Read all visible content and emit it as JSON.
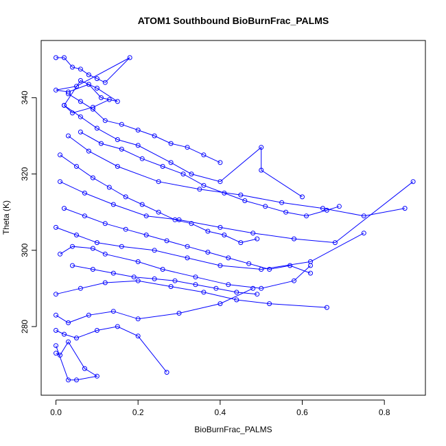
{
  "chart_data": {
    "type": "line",
    "markers": "open-circle",
    "title": "ATOM1 Southbound BioBurnFrac_PALMS",
    "xlabel": "BioBurnFrac_PALMS",
    "ylabel": "Theta (K)",
    "xlim": [
      -0.036,
      0.9
    ],
    "ylim": [
      262,
      355
    ],
    "xticks": [
      0.0,
      0.2,
      0.4,
      0.6,
      0.8
    ],
    "xtick_labels": [
      "0.0",
      "0.2",
      "0.4",
      "0.6",
      "0.8"
    ],
    "yticks": [
      280,
      300,
      320,
      340
    ],
    "ytick_labels": [
      "280",
      "300",
      "320",
      "340"
    ],
    "grid": false,
    "legend": "none",
    "color": "#0000ff",
    "series": [
      {
        "x": [
          0.0,
          0.02,
          0.04,
          0.06,
          0.08,
          0.1,
          0.12,
          0.18,
          0.05,
          0.0,
          0.03,
          0.08,
          0.11,
          0.15,
          0.1,
          0.06,
          0.02,
          0.04,
          0.09,
          0.13
        ],
        "y": [
          350.5,
          350.5,
          348.0,
          347.5,
          346.0,
          345.0,
          344.0,
          350.5,
          343.0,
          342.0,
          341.5,
          343.5,
          340.0,
          339.0,
          342.5,
          344.5,
          338.0,
          336.0,
          337.5,
          339.5
        ]
      },
      {
        "x": [
          0.02,
          0.06,
          0.1,
          0.15,
          0.2,
          0.28,
          0.33,
          0.4,
          0.5,
          0.5,
          0.6
        ],
        "y": [
          338.0,
          335.0,
          332.0,
          329.0,
          327.5,
          323.0,
          320.0,
          318.0,
          327.0,
          321.0,
          314.0
        ]
      },
      {
        "x": [
          0.03,
          0.08,
          0.15,
          0.25,
          0.35,
          0.45,
          0.55,
          0.65,
          0.75,
          0.85
        ],
        "y": [
          330.0,
          326.0,
          322.0,
          318.0,
          316.0,
          314.5,
          312.5,
          311.0,
          309.0,
          311.0
        ]
      },
      {
        "x": [
          0.01,
          0.07,
          0.14,
          0.22,
          0.3,
          0.4,
          0.48,
          0.58,
          0.68,
          0.87
        ],
        "y": [
          318.0,
          315.0,
          312.0,
          309.0,
          308.0,
          306.0,
          304.5,
          303.0,
          302.0,
          318.0
        ]
      },
      {
        "x": [
          0.0,
          0.05,
          0.1,
          0.16,
          0.24,
          0.32,
          0.4,
          0.5,
          0.62,
          0.75
        ],
        "y": [
          306.0,
          304.0,
          302.0,
          301.0,
          300.0,
          298.0,
          296.0,
          295.0,
          297.0,
          304.5
        ]
      },
      {
        "x": [
          0.01,
          0.04,
          0.09,
          0.12,
          0.2,
          0.26,
          0.34,
          0.42,
          0.5,
          0.58,
          0.62
        ],
        "y": [
          299.0,
          301.0,
          300.5,
          299.0,
          297.0,
          295.0,
          293.0,
          291.0,
          290.0,
          292.0,
          296.0
        ]
      },
      {
        "x": [
          0.0,
          0.06,
          0.12,
          0.2,
          0.28,
          0.36,
          0.44,
          0.52,
          0.66
        ],
        "y": [
          288.5,
          290.0,
          291.5,
          292.0,
          290.5,
          289.0,
          287.0,
          286.0,
          285.0
        ]
      },
      {
        "x": [
          0.0,
          0.03,
          0.08,
          0.14,
          0.2,
          0.3,
          0.4,
          0.48
        ],
        "y": [
          283.0,
          281.0,
          283.0,
          284.0,
          282.0,
          283.5,
          286.0,
          290.0
        ]
      },
      {
        "x": [
          0.0,
          0.02,
          0.05,
          0.1,
          0.15,
          0.2,
          0.27
        ],
        "y": [
          279.0,
          278.0,
          277.0,
          279.0,
          280.0,
          277.5,
          268.0
        ]
      },
      {
        "x": [
          0.0,
          0.01,
          0.03,
          0.07,
          0.1,
          0.05,
          0.03,
          0.0
        ],
        "y": [
          273.0,
          272.5,
          276.0,
          269.0,
          267.0,
          266.0,
          266.0,
          275.0
        ]
      },
      {
        "x": [
          0.01,
          0.05,
          0.09,
          0.13,
          0.17,
          0.21,
          0.25,
          0.29,
          0.33,
          0.37,
          0.41,
          0.45,
          0.49
        ],
        "y": [
          325.0,
          322.0,
          319.0,
          316.5,
          314.0,
          312.0,
          310.0,
          308.0,
          307.0,
          305.0,
          304.0,
          302.0,
          303.0
        ]
      },
      {
        "x": [
          0.02,
          0.07,
          0.12,
          0.17,
          0.22,
          0.27,
          0.32,
          0.37,
          0.42,
          0.47,
          0.52,
          0.57,
          0.62
        ],
        "y": [
          311.0,
          309.0,
          307.0,
          305.5,
          304.0,
          302.5,
          301.0,
          299.5,
          298.0,
          296.5,
          295.0,
          296.0,
          294.0
        ]
      },
      {
        "x": [
          0.04,
          0.09,
          0.14,
          0.19,
          0.24,
          0.29,
          0.34,
          0.39,
          0.44,
          0.49
        ],
        "y": [
          296.0,
          295.0,
          294.0,
          293.0,
          292.5,
          292.0,
          291.0,
          290.0,
          289.0,
          288.5
        ]
      },
      {
        "x": [
          0.06,
          0.11,
          0.16,
          0.21,
          0.26,
          0.31,
          0.36,
          0.41,
          0.46,
          0.51,
          0.56,
          0.61,
          0.66,
          0.69
        ],
        "y": [
          331.0,
          328.0,
          326.5,
          324.0,
          322.0,
          320.0,
          317.0,
          315.0,
          313.0,
          311.5,
          310.0,
          309.0,
          310.5,
          311.5
        ]
      },
      {
        "x": [
          0.03,
          0.06,
          0.09,
          0.12,
          0.16,
          0.2,
          0.24,
          0.28,
          0.32,
          0.36,
          0.4
        ],
        "y": [
          341.0,
          339.0,
          337.0,
          334.0,
          333.0,
          331.5,
          330.0,
          328.0,
          327.0,
          325.0,
          323.0
        ]
      }
    ]
  }
}
